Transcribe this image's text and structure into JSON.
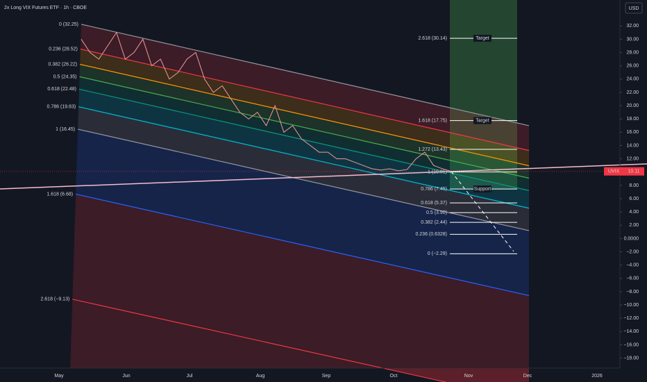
{
  "header": {
    "title": "2x Long VIX Futures ETF · 1h · CBOE"
  },
  "currency": "USD",
  "price_axis": {
    "ylim": [
      -19.5,
      35.9
    ],
    "ticks": [
      {
        "value": 32,
        "label": "32.00"
      },
      {
        "value": 30,
        "label": "30.00"
      },
      {
        "value": 28,
        "label": "28.00"
      },
      {
        "value": 26,
        "label": "26.00"
      },
      {
        "value": 24,
        "label": "24.00"
      },
      {
        "value": 22,
        "label": "22.00"
      },
      {
        "value": 20,
        "label": "20.00"
      },
      {
        "value": 18,
        "label": "18.00"
      },
      {
        "value": 16,
        "label": "16.00"
      },
      {
        "value": 14,
        "label": "14.00"
      },
      {
        "value": 12,
        "label": "12.00"
      },
      {
        "value": 8,
        "label": "8.00"
      },
      {
        "value": 6,
        "label": "6.00"
      },
      {
        "value": 4,
        "label": "4.00"
      },
      {
        "value": 2,
        "label": "2.00"
      },
      {
        "value": 0,
        "label": "0.0000"
      },
      {
        "value": -2,
        "label": "−2.00"
      },
      {
        "value": -4,
        "label": "−4.00"
      },
      {
        "value": -6,
        "label": "−6.00"
      },
      {
        "value": -8,
        "label": "−8.00"
      },
      {
        "value": -10,
        "label": "−10.00"
      },
      {
        "value": -12,
        "label": "−12.00"
      },
      {
        "value": -14,
        "label": "−14.00"
      },
      {
        "value": -16,
        "label": "−16.00"
      },
      {
        "value": -18,
        "label": "−18.00"
      }
    ]
  },
  "time_axis": {
    "labels": [
      "May",
      "Jun",
      "Jul",
      "Aug",
      "Sep",
      "Oct",
      "Nov",
      "Dec",
      "2026"
    ]
  },
  "price": {
    "symbol": "UVIX",
    "last": 10.11,
    "closes": [
      30,
      28,
      27,
      29,
      31,
      27,
      28,
      30,
      26,
      27,
      24,
      25,
      27,
      28,
      24,
      22,
      23,
      21,
      19,
      18,
      19,
      17,
      20,
      16,
      17,
      15,
      14,
      13,
      13,
      12,
      12,
      11.5,
      11,
      10.5,
      10.3,
      10.5,
      10.2,
      10.4,
      12,
      13,
      11,
      10.5,
      10.11
    ]
  },
  "channel_levels": [
    {
      "label": "0 (32.25)",
      "value": 32.25,
      "color": "#9598a1"
    },
    {
      "label": "0.236 (28.52)",
      "value": 28.52,
      "color": "#f23645"
    },
    {
      "label": "0.382 (26.22)",
      "value": 26.22,
      "color": "#ff9800"
    },
    {
      "label": "0.5 (24.35)",
      "value": 24.35,
      "color": "#4caf50"
    },
    {
      "label": "0.618 (22.48)",
      "value": 22.48,
      "color": "#089981"
    },
    {
      "label": "0.786 (19.83)",
      "value": 19.83,
      "color": "#00bcd4"
    },
    {
      "label": "1 (16.45)",
      "value": 16.45,
      "color": "#9598a1"
    },
    {
      "label": "1.618 (6.68)",
      "value": 6.68,
      "color": "#2962ff"
    },
    {
      "label": "2.618 (−9.13)",
      "value": -9.13,
      "color": "#f23645"
    }
  ],
  "projection_levels": [
    {
      "label": "2.618 (30.14)",
      "value": 30.14,
      "note": "Target"
    },
    {
      "label": "1.618 (17.75)",
      "value": 17.75,
      "note": "Target"
    },
    {
      "label": "1.272 (13.43)",
      "value": 13.43
    },
    {
      "label": "1 (10.01)",
      "value": 10.01
    },
    {
      "label": "0.786 (7.45)",
      "value": 7.45,
      "note": "Support"
    },
    {
      "label": "0.618 (5.37)",
      "value": 5.37
    },
    {
      "label": "0.5 (3.90)",
      "value": 3.9
    },
    {
      "label": "0.382 (2.44)",
      "value": 2.44
    },
    {
      "label": "0.236 (0.6328)",
      "value": 0.6328
    },
    {
      "label": "0 (−2.29)",
      "value": -2.29
    }
  ]
}
